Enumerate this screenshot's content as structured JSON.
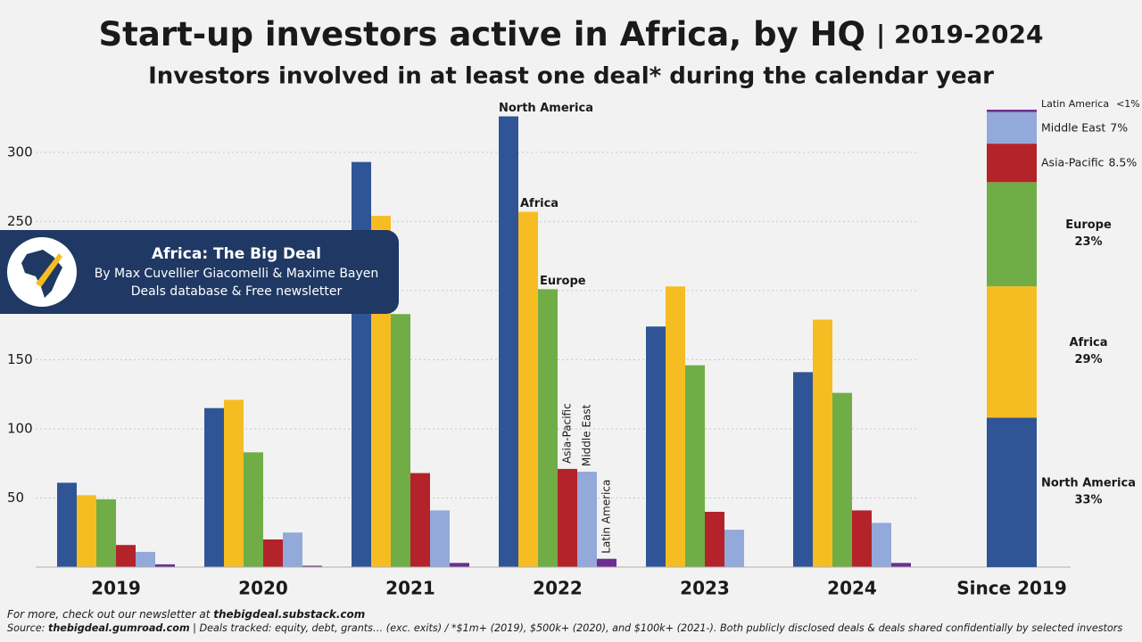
{
  "chart_data": [
    {
      "type": "bar",
      "title": "Start-up investors active in Africa, by HQ",
      "title_period": "| 2019-2024",
      "subtitle": "Investors involved in at least one deal* during the calendar year",
      "categories": [
        "2019",
        "2020",
        "2021",
        "2022",
        "2023",
        "2024"
      ],
      "series": [
        {
          "name": "North America",
          "color": "#2f5596",
          "values": [
            61,
            115,
            293,
            326,
            174,
            141
          ]
        },
        {
          "name": "Africa",
          "color": "#f6bd23",
          "values": [
            52,
            121,
            254,
            257,
            203,
            179
          ]
        },
        {
          "name": "Europe",
          "color": "#70ad47",
          "values": [
            49,
            83,
            183,
            201,
            146,
            126
          ]
        },
        {
          "name": "Asia-Pacific",
          "color": "#b4232a",
          "values": [
            16,
            20,
            68,
            71,
            40,
            41
          ]
        },
        {
          "name": "Middle East",
          "color": "#93a9d9",
          "values": [
            11,
            25,
            41,
            69,
            27,
            32
          ]
        },
        {
          "name": "Latin America",
          "color": "#6b2e8f",
          "values": [
            2,
            1,
            3,
            6,
            0,
            3
          ]
        }
      ],
      "ylim": [
        0,
        336
      ],
      "yticks": [
        50,
        100,
        150,
        200,
        250,
        300
      ],
      "grid": true
    },
    {
      "type": "stacked_bar",
      "categories": [
        "Since 2019"
      ],
      "series": [
        {
          "name": "North America",
          "color": "#2f5596",
          "values": [
            33
          ],
          "value_labels": [
            "33%"
          ]
        },
        {
          "name": "Africa",
          "color": "#f6bd23",
          "values": [
            29
          ],
          "value_labels": [
            "29%"
          ]
        },
        {
          "name": "Europe",
          "color": "#70ad47",
          "values": [
            23
          ],
          "value_labels": [
            "23%"
          ]
        },
        {
          "name": "Asia-Pacific",
          "color": "#b4232a",
          "values": [
            8.5
          ],
          "value_labels": [
            "8.5%"
          ]
        },
        {
          "name": "Middle East",
          "color": "#93a9d9",
          "values": [
            7
          ],
          "value_labels": [
            "7%"
          ]
        },
        {
          "name": "Latin America",
          "color": "#6b2e8f",
          "values": [
            0.5
          ],
          "value_labels": [
            "<1%"
          ]
        }
      ],
      "ylim": [
        0,
        101
      ]
    }
  ],
  "banner": {
    "title": "Africa: The Big Deal",
    "line1": "By Max Cuvellier Giacomelli & Maxime Bayen",
    "line2": "Deals database & Free newsletter"
  },
  "footer": {
    "line1": [
      "For more, check out our newsletter at ",
      "thebigdeal.substack.com"
    ],
    "line2": [
      "Source: ",
      "thebigdeal.gumroad.com",
      " | Deals tracked: equity, debt, grants… (exc. exits) / *$1m+ (2019), $500k+ (2020), and $100k+ (2021-). Both publicly disclosed deals & deals shared confidentially by selected investors"
    ]
  }
}
